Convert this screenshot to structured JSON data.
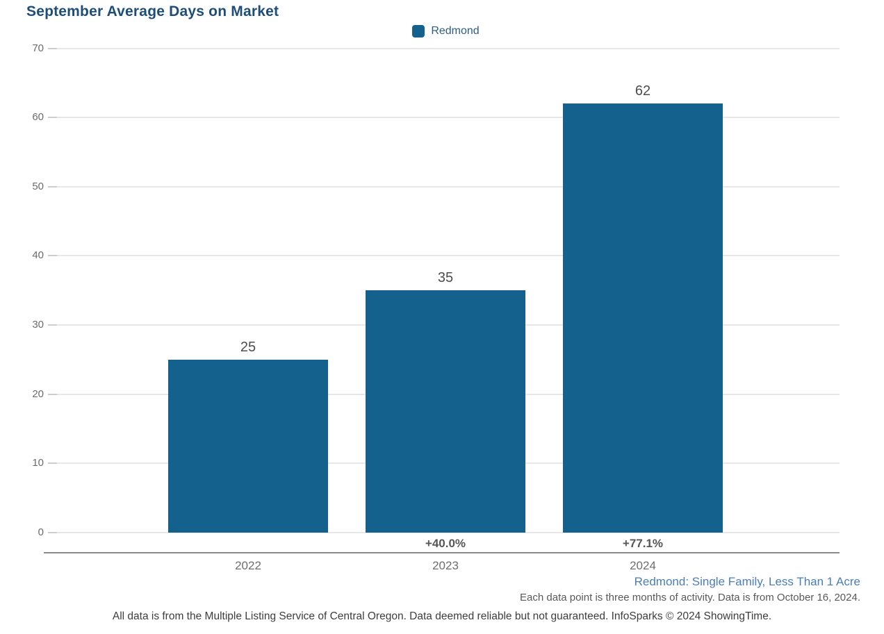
{
  "title": "September Average Days on Market",
  "legend": {
    "label": "Redmond",
    "swatch_color": "#15618E"
  },
  "chart_data": {
    "type": "bar",
    "title": "September Average Days on Market",
    "categories": [
      "2022",
      "2023",
      "2024"
    ],
    "series": [
      {
        "name": "Redmond",
        "values": [
          25,
          35,
          62
        ]
      }
    ],
    "value_labels": [
      "25",
      "35",
      "62"
    ],
    "pct_change_labels": [
      "",
      "+40.0%",
      "+77.1%"
    ],
    "xlabel": "",
    "ylabel": "",
    "ylim": [
      0,
      70
    ],
    "yticks": [
      70,
      60,
      50,
      40,
      30,
      20,
      10,
      0
    ],
    "grid": true,
    "legend_position": "top-center",
    "bar_color": "#15618E"
  },
  "colors": {
    "bar": "#15618E",
    "title": "#1d4e79",
    "segment_note": "#4a7eb5",
    "gridline": "#e7e7e7",
    "axis_line": "#8a8a8a"
  },
  "footnotes": {
    "segment": "Redmond: Single Family, Less Than 1 Acre",
    "data_note": "Each data point is three months of activity. Data is from October 16, 2024.",
    "disclaimer": "All data is from the Multiple Listing Service of Central Oregon. Data deemed reliable but not guaranteed. InfoSparks © 2024 ShowingTime."
  }
}
